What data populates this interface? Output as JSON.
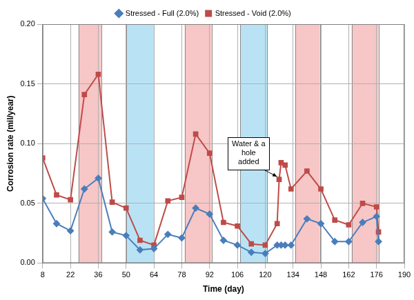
{
  "chart_data": {
    "type": "line",
    "x_label": "Time (day)",
    "y_label": "Corrosion rate (mil/year)",
    "xlim": [
      8,
      190
    ],
    "xticks": [
      8,
      22,
      36,
      50,
      64,
      78,
      92,
      106,
      120,
      134,
      148,
      162,
      176,
      190
    ],
    "ylim": [
      0,
      0.2
    ],
    "yticks": [
      {
        "value": 0,
        "label": "0.00"
      },
      {
        "value": 0.05,
        "label": "0.05"
      },
      {
        "value": 0.1,
        "label": "0.10"
      },
      {
        "value": 0.15,
        "label": "0.15"
      },
      {
        "value": 0.2,
        "label": "0.20"
      }
    ],
    "grid": true,
    "legend": "top",
    "series": [
      {
        "name": "Stressed - Full (2.0%)",
        "color": "#4a7ebb",
        "marker": "diamond",
        "x": [
          8,
          15,
          22,
          29,
          36,
          43,
          50,
          57,
          64,
          71,
          78,
          85,
          92,
          99,
          106,
          113,
          120,
          126,
          128,
          130,
          133,
          141,
          148,
          155,
          162,
          169,
          176,
          177
        ],
        "values": [
          0.054,
          0.033,
          0.027,
          0.062,
          0.071,
          0.026,
          0.023,
          0.011,
          0.012,
          0.024,
          0.021,
          0.046,
          0.041,
          0.019,
          0.015,
          0.009,
          0.008,
          0.015,
          0.015,
          0.015,
          0.015,
          0.037,
          0.033,
          0.018,
          0.018,
          0.034,
          0.039,
          0.018
        ]
      },
      {
        "name": "Stressed - Void (2.0%)",
        "color": "#be4b48",
        "marker": "square",
        "x": [
          8,
          15,
          22,
          29,
          36,
          43,
          50,
          57,
          64,
          71,
          78,
          85,
          92,
          99,
          106,
          113,
          120,
          126,
          127,
          128,
          130,
          133,
          141,
          148,
          155,
          162,
          169,
          176,
          177
        ],
        "values": [
          0.088,
          0.057,
          0.053,
          0.141,
          0.158,
          0.051,
          0.046,
          0.019,
          0.015,
          0.052,
          0.055,
          0.108,
          0.092,
          0.034,
          0.031,
          0.016,
          0.015,
          0.033,
          0.07,
          0.084,
          0.082,
          0.062,
          0.077,
          0.062,
          0.036,
          0.032,
          0.05,
          0.047,
          0.026
        ]
      }
    ],
    "bands": [
      {
        "start": 26,
        "end": 37.5,
        "color": "#f7c6c6"
      },
      {
        "start": 50,
        "end": 64,
        "color": "#b9e3f5"
      },
      {
        "start": 79.5,
        "end": 93,
        "color": "#f7c6c6"
      },
      {
        "start": 107.5,
        "end": 121,
        "color": "#b9e3f5"
      },
      {
        "start": 135,
        "end": 147.5,
        "color": "#f7c6c6"
      },
      {
        "start": 163.5,
        "end": 177,
        "color": "#f7c6c6"
      }
    ],
    "annotations": [
      {
        "text": "Water & a hole added",
        "x": 127,
        "y": 0.07
      }
    ]
  }
}
